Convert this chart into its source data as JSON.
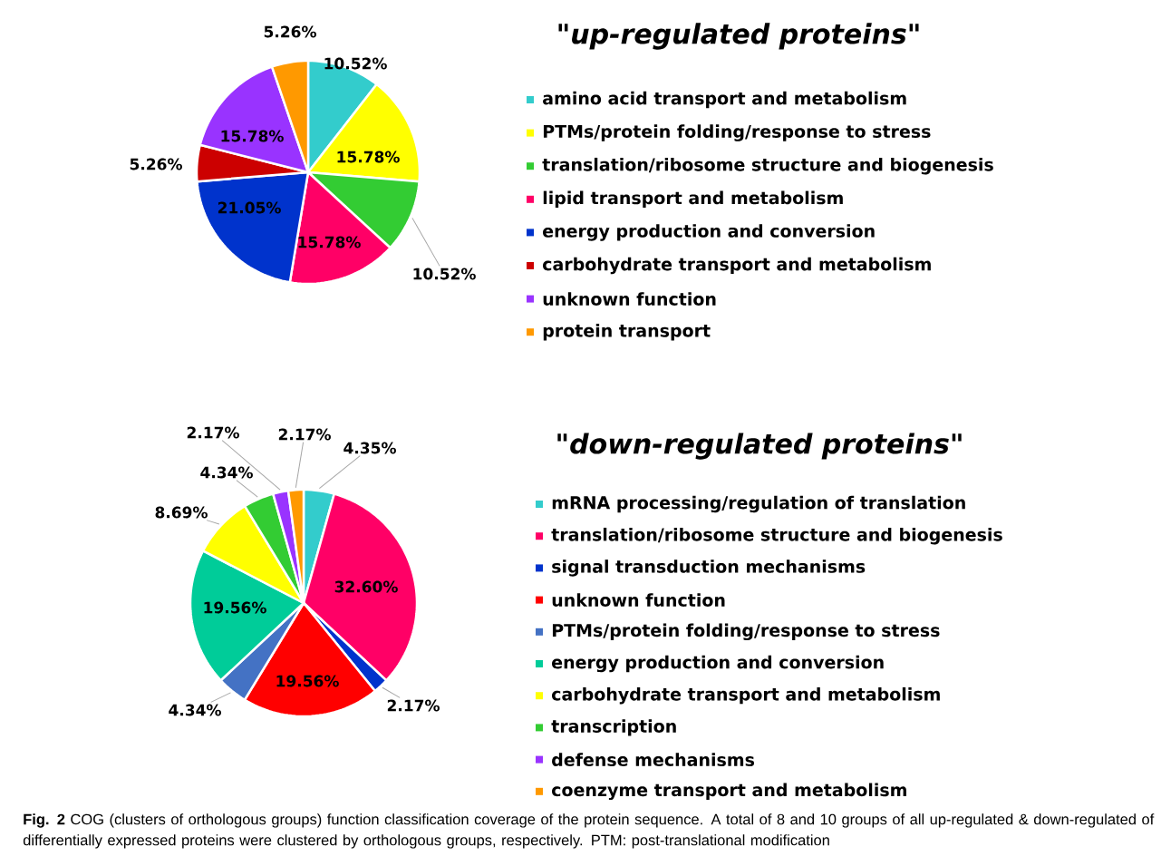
{
  "chart_data": [
    {
      "type": "pie",
      "title": "\"up-regulated proteins\"",
      "legend": "right",
      "categories": [
        "amino acid transport and metabolism",
        "PTMs/protein folding/response to stress",
        "translation/ribosome structure and biogenesis",
        "lipid transport and metabolism",
        "energy production and conversion",
        "carbohydrate transport and metabolism",
        "unknown function",
        "protein transport"
      ],
      "values": [
        10.52,
        15.78,
        10.52,
        15.78,
        21.05,
        5.26,
        15.78,
        5.26
      ],
      "value_labels": [
        "10.52%",
        "15.78%",
        "10.52%",
        "15.78%",
        "21.05%",
        "5.26%",
        "15.78%",
        "5.26%"
      ],
      "colors": [
        "#33cccc",
        "#ffff00",
        "#33cc33",
        "#ff0066",
        "#0033cc",
        "#cc0000",
        "#9933ff",
        "#ff9900"
      ]
    },
    {
      "type": "pie",
      "title": "\"down-regulated proteins\"",
      "legend": "right",
      "categories": [
        "mRNA processing/regulation of translation",
        "translation/ribosome structure and biogenesis",
        "signal transduction mechanisms",
        "unknown function",
        "PTMs/protein folding/response to stress",
        "energy production and conversion",
        "carbohydrate transport and metabolism",
        "transcription",
        "defense mechanisms",
        "coenzyme transport and metabolism"
      ],
      "values": [
        4.35,
        32.6,
        2.17,
        19.56,
        4.34,
        19.56,
        8.69,
        4.34,
        2.17,
        2.17
      ],
      "value_labels": [
        "4.35%",
        "32.60%",
        "2.17%",
        "19.56%",
        "4.34%",
        "19.56%",
        "8.69%",
        "4.34%",
        "2.17%",
        "2.17%"
      ],
      "colors": [
        "#33cccc",
        "#ff0066",
        "#0033cc",
        "#ff0000",
        "#4472c4",
        "#00cc99",
        "#ffff00",
        "#33cc33",
        "#9933ff",
        "#ff9900"
      ],
      "annotations": [
        "**Fig. 2** COG (clusters of orthologous groups) function classification coverage of the protein sequence. A total of 8 and 10 groups of all up-regulated & down-regulated of differentially expressed proteins were clustered by orthologous groups, respectively. PTM: post-translational modification"
      ]
    }
  ]
}
